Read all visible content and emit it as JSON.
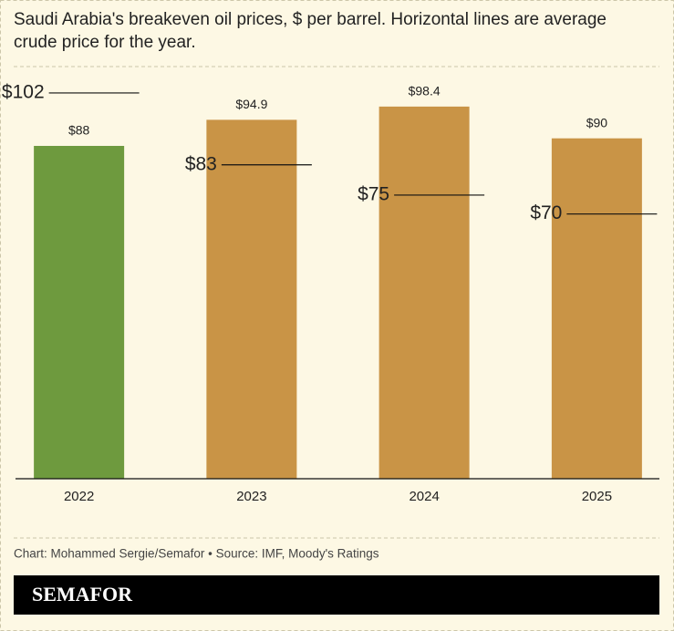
{
  "chart_data": {
    "type": "bar",
    "title_lines": [
      "Saudi Arabia's breakeven oil prices, $ per barrel. Horizontal lines are average",
      "crude price for the year."
    ],
    "categories": [
      "2022",
      "2023",
      "2024",
      "2025"
    ],
    "values": [
      88,
      94.9,
      98.4,
      90
    ],
    "value_labels": [
      "$88",
      "$94.9",
      "$98.4",
      "$90"
    ],
    "colors": [
      "#6e9a3e",
      "#c99446",
      "#c99446",
      "#c99446"
    ],
    "averages": {
      "values": [
        102,
        83,
        75,
        70
      ],
      "value_labels": [
        "$102",
        "$83",
        "$75",
        "$70"
      ],
      "color": "#111111"
    },
    "ylim": [
      0,
      105
    ],
    "source": "Chart: Mohammed Sergie/Semafor • Source: IMF, Moody's Ratings",
    "brand": "SEMAFOR"
  }
}
